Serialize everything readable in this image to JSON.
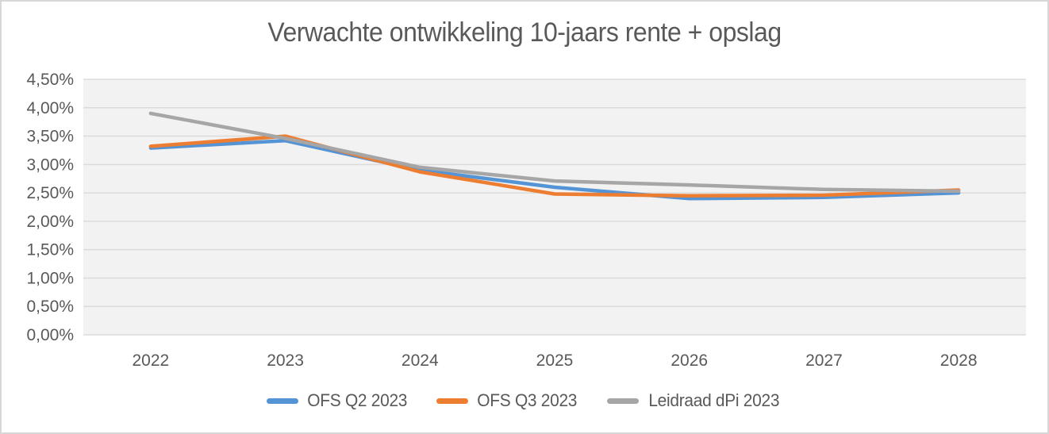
{
  "chart_data": {
    "type": "line",
    "title": "Verwachte ontwikkeling 10-jaars rente + opslag",
    "x": [
      "2022",
      "2023",
      "2024",
      "2025",
      "2026",
      "2027",
      "2028"
    ],
    "series": [
      {
        "name": "OFS Q2 2023",
        "color": "#5594D4",
        "values": [
          3.29,
          3.42,
          2.9,
          2.6,
          2.4,
          2.42,
          2.5
        ]
      },
      {
        "name": "OFS Q3 2023",
        "color": "#ED7D31",
        "values": [
          3.32,
          3.5,
          2.87,
          2.48,
          2.45,
          2.46,
          2.55
        ]
      },
      {
        "name": "Leidraad dPi 2023",
        "color": "#A6A6A6",
        "values": [
          3.9,
          3.46,
          2.95,
          2.71,
          2.64,
          2.56,
          2.53
        ]
      }
    ],
    "ylim": [
      0,
      4.5
    ],
    "ytick_step": 0.5,
    "ytick_labels_top_to_bottom": [
      "4,50%",
      "4,00%",
      "3,50%",
      "3,00%",
      "2,50%",
      "2,00%",
      "1,50%",
      "1,00%",
      "0,50%",
      "0,00%"
    ],
    "grid": true,
    "legend_position": "bottom",
    "value_unit": "%",
    "colors": {
      "plot_background": "#F2F2F2",
      "gridline": "#DBDBDB",
      "text": "#595959",
      "frame_border": "#D7D7D7"
    }
  }
}
